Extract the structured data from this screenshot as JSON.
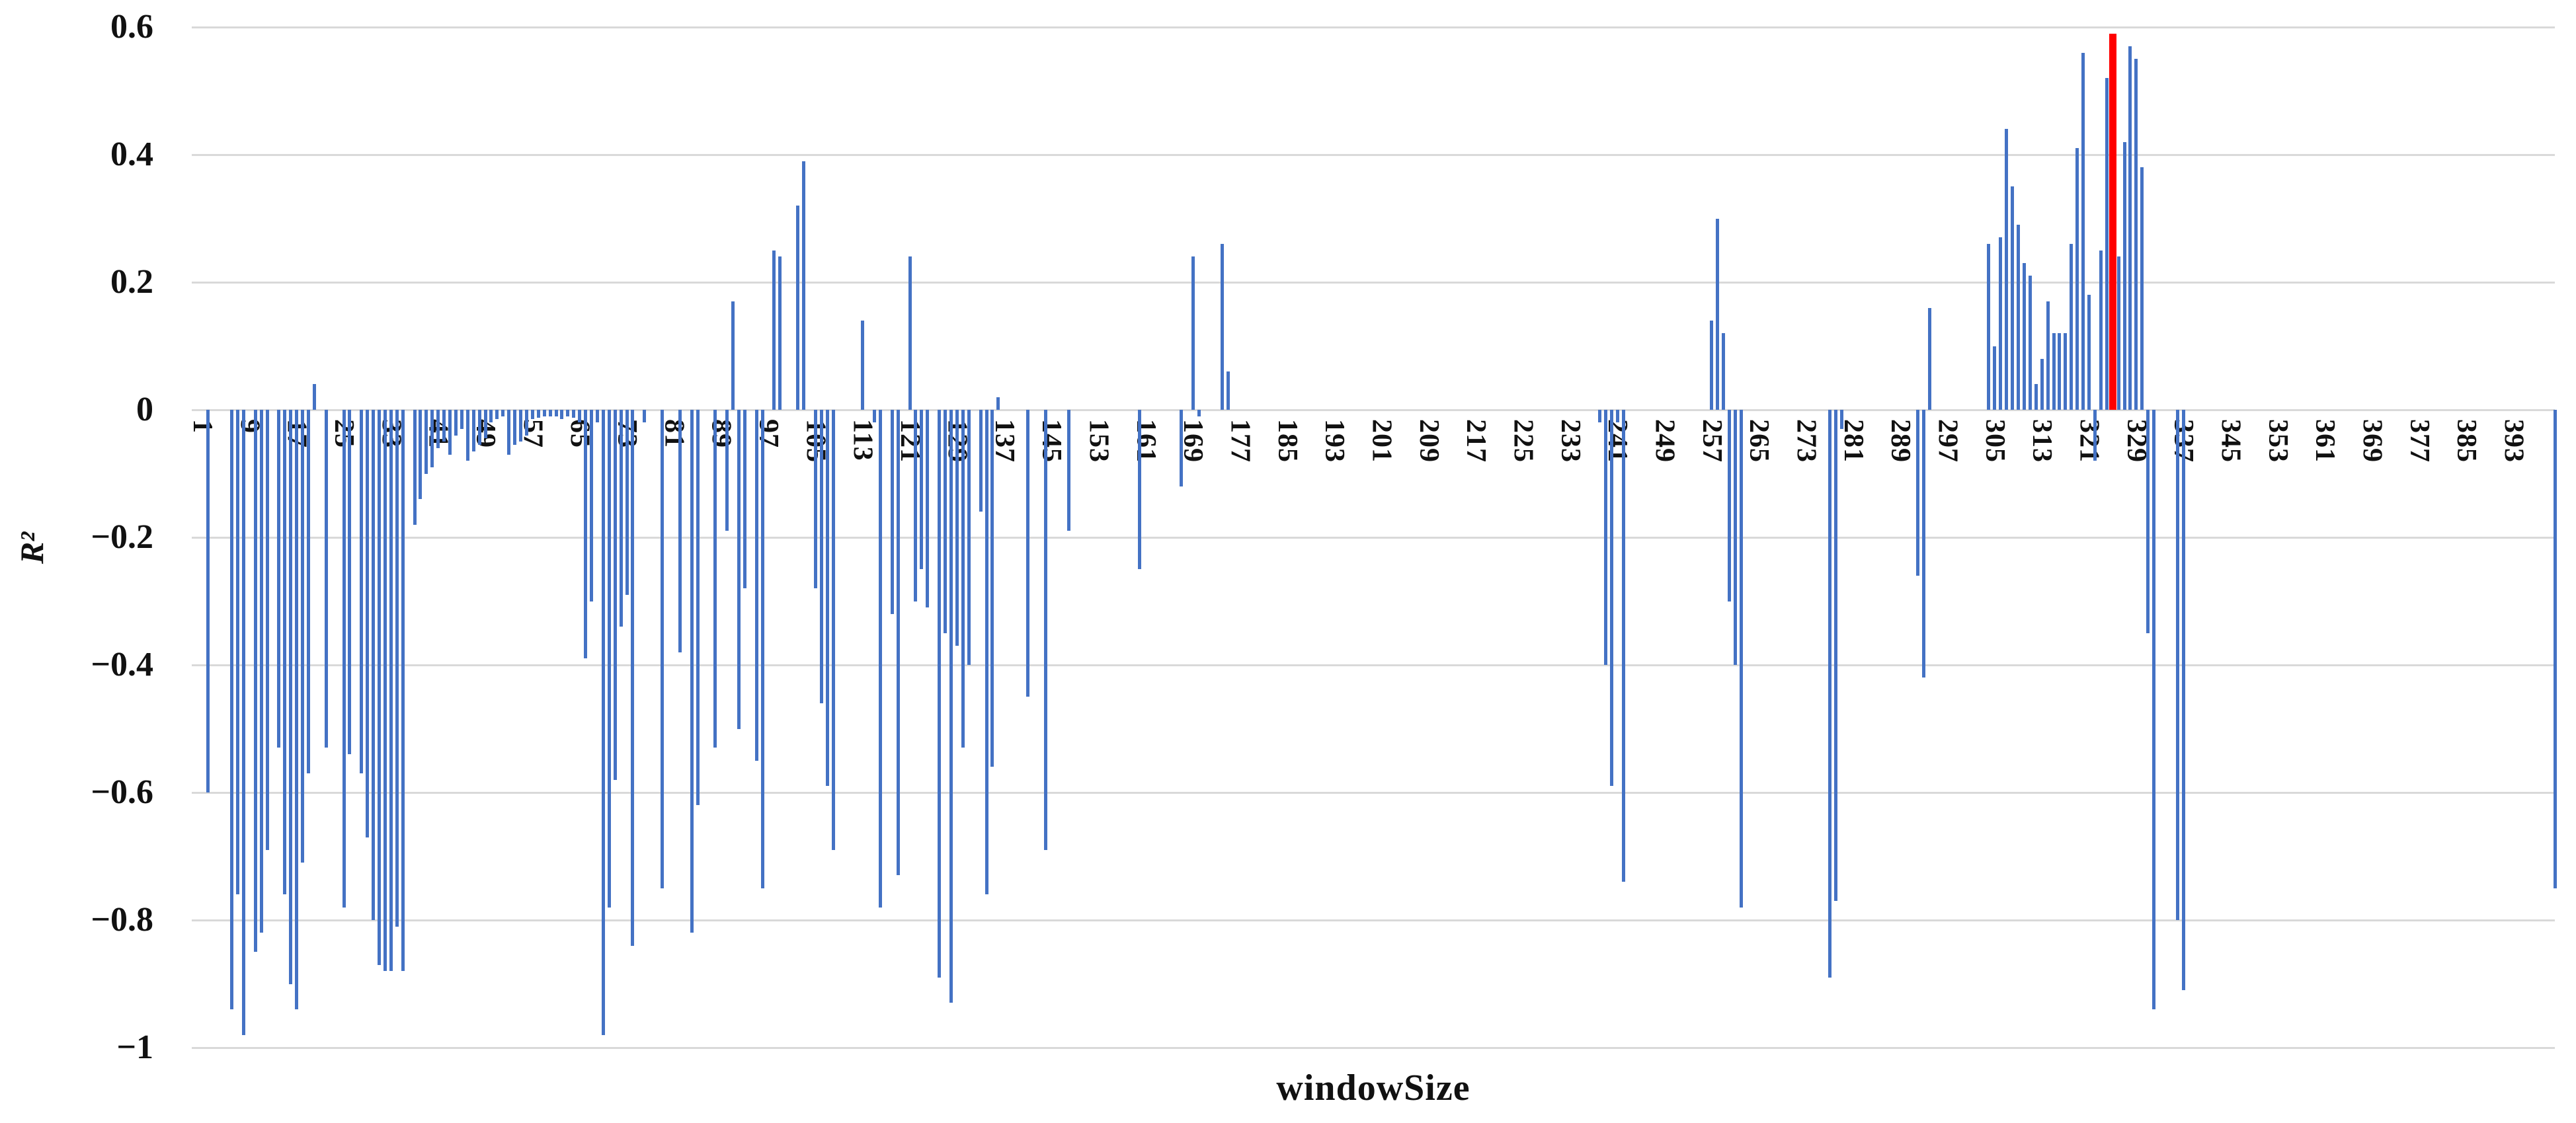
{
  "chart_data": {
    "type": "bar",
    "title": "",
    "xlabel": "windowSize",
    "ylabel": "R²",
    "ylim": [
      -1,
      0.6
    ],
    "ytick_step": 0.2,
    "yticks": [
      "0.6",
      "0.4",
      "0.2",
      "0",
      "-0.2",
      "-0.4",
      "-0.6",
      "-0.8",
      "-1"
    ],
    "ytick_values": [
      0.6,
      0.4,
      0.2,
      0,
      -0.2,
      -0.4,
      -0.6,
      -0.8,
      -1
    ],
    "x_count": 400,
    "xtick_labels": [
      1,
      9,
      17,
      25,
      33,
      41,
      49,
      57,
      65,
      73,
      81,
      89,
      97,
      105,
      113,
      121,
      129,
      137,
      145,
      153,
      161,
      169,
      177,
      185,
      193,
      201,
      209,
      217,
      225,
      233,
      241,
      249,
      257,
      265,
      273,
      281,
      289,
      297,
      305,
      313,
      321,
      329,
      337,
      345,
      353,
      361,
      369,
      377,
      385,
      393
    ],
    "legend": "none",
    "grid": "horizontal",
    "bar_color": "#4472C4",
    "highlight_color": "#FF0000",
    "highlight_x": 325,
    "gridline_color": "#D9D9D9",
    "points": [
      [
        2,
        -0.6
      ],
      [
        6,
        -0.94
      ],
      [
        7,
        -0.76
      ],
      [
        8,
        -0.98
      ],
      [
        10,
        -0.85
      ],
      [
        11,
        -0.82
      ],
      [
        12,
        -0.69
      ],
      [
        14,
        -0.53
      ],
      [
        15,
        -0.76
      ],
      [
        16,
        -0.9
      ],
      [
        17,
        -0.94
      ],
      [
        18,
        -0.71
      ],
      [
        19,
        -0.57
      ],
      [
        20,
        0.04
      ],
      [
        22,
        -0.53
      ],
      [
        25,
        -0.78
      ],
      [
        26,
        -0.54
      ],
      [
        28,
        -0.57
      ],
      [
        29,
        -0.67
      ],
      [
        30,
        -0.8
      ],
      [
        31,
        -0.87
      ],
      [
        32,
        -0.88
      ],
      [
        33,
        -0.88
      ],
      [
        34,
        -0.81
      ],
      [
        35,
        -0.88
      ],
      [
        37,
        -0.18
      ],
      [
        38,
        -0.14
      ],
      [
        39,
        -0.1
      ],
      [
        40,
        -0.09
      ],
      [
        41,
        -0.06
      ],
      [
        42,
        -0.05
      ],
      [
        43,
        -0.07
      ],
      [
        44,
        -0.04
      ],
      [
        45,
        -0.03
      ],
      [
        46,
        -0.08
      ],
      [
        47,
        -0.065
      ],
      [
        48,
        -0.055
      ],
      [
        49,
        -0.045
      ],
      [
        50,
        -0.02
      ],
      [
        51,
        -0.015
      ],
      [
        52,
        -0.01
      ],
      [
        53,
        -0.07
      ],
      [
        54,
        -0.055
      ],
      [
        55,
        -0.05
      ],
      [
        56,
        -0.04
      ],
      [
        57,
        -0.015
      ],
      [
        58,
        -0.012
      ],
      [
        59,
        -0.01
      ],
      [
        60,
        -0.01
      ],
      [
        61,
        -0.01
      ],
      [
        62,
        -0.015
      ],
      [
        63,
        -0.01
      ],
      [
        64,
        -0.012
      ],
      [
        65,
        -0.02
      ],
      [
        66,
        -0.39
      ],
      [
        67,
        -0.3
      ],
      [
        68,
        -0.02
      ],
      [
        69,
        -0.98
      ],
      [
        70,
        -0.78
      ],
      [
        71,
        -0.58
      ],
      [
        72,
        -0.34
      ],
      [
        73,
        -0.29
      ],
      [
        74,
        -0.84
      ],
      [
        76,
        -0.02
      ],
      [
        79,
        -0.75
      ],
      [
        82,
        -0.38
      ],
      [
        84,
        -0.82
      ],
      [
        85,
        -0.62
      ],
      [
        88,
        -0.53
      ],
      [
        90,
        -0.19
      ],
      [
        91,
        0.17
      ],
      [
        92,
        -0.5
      ],
      [
        93,
        -0.28
      ],
      [
        95,
        -0.55
      ],
      [
        96,
        -0.75
      ],
      [
        98,
        0.25
      ],
      [
        99,
        0.24
      ],
      [
        102,
        0.32
      ],
      [
        103,
        0.39
      ],
      [
        105,
        -0.28
      ],
      [
        106,
        -0.46
      ],
      [
        107,
        -0.59
      ],
      [
        108,
        -0.69
      ],
      [
        113,
        0.14
      ],
      [
        115,
        -0.02
      ],
      [
        116,
        -0.78
      ],
      [
        118,
        -0.32
      ],
      [
        119,
        -0.73
      ],
      [
        121,
        0.24
      ],
      [
        122,
        -0.3
      ],
      [
        123,
        -0.25
      ],
      [
        124,
        -0.31
      ],
      [
        126,
        -0.89
      ],
      [
        127,
        -0.35
      ],
      [
        128,
        -0.93
      ],
      [
        129,
        -0.37
      ],
      [
        130,
        -0.53
      ],
      [
        131,
        -0.4
      ],
      [
        133,
        -0.16
      ],
      [
        134,
        -0.76
      ],
      [
        135,
        -0.56
      ],
      [
        136,
        0.02
      ],
      [
        141,
        -0.45
      ],
      [
        144,
        -0.69
      ],
      [
        148,
        -0.19
      ],
      [
        160,
        -0.25
      ],
      [
        167,
        -0.12
      ],
      [
        169,
        0.24
      ],
      [
        170,
        -0.01
      ],
      [
        174,
        0.26
      ],
      [
        175,
        0.06
      ],
      [
        238,
        -0.02
      ],
      [
        239,
        -0.4
      ],
      [
        240,
        -0.59
      ],
      [
        241,
        -0.02
      ],
      [
        242,
        -0.74
      ],
      [
        257,
        0.14
      ],
      [
        258,
        0.3
      ],
      [
        259,
        0.12
      ],
      [
        260,
        -0.3
      ],
      [
        261,
        -0.4
      ],
      [
        262,
        -0.78
      ],
      [
        277,
        -0.89
      ],
      [
        278,
        -0.77
      ],
      [
        279,
        -0.03
      ],
      [
        292,
        -0.26
      ],
      [
        293,
        -0.42
      ],
      [
        294,
        0.16
      ],
      [
        304,
        0.26
      ],
      [
        305,
        0.1
      ],
      [
        306,
        0.27
      ],
      [
        307,
        0.44
      ],
      [
        308,
        0.35
      ],
      [
        309,
        0.29
      ],
      [
        310,
        0.23
      ],
      [
        311,
        0.21
      ],
      [
        312,
        0.04
      ],
      [
        313,
        0.08
      ],
      [
        314,
        0.17
      ],
      [
        315,
        0.12
      ],
      [
        316,
        0.12
      ],
      [
        317,
        0.12
      ],
      [
        318,
        0.26
      ],
      [
        319,
        0.41
      ],
      [
        320,
        0.56
      ],
      [
        321,
        0.18
      ],
      [
        322,
        -0.08
      ],
      [
        323,
        0.25
      ],
      [
        324,
        0.52
      ],
      [
        325,
        0.59
      ],
      [
        326,
        0.24
      ],
      [
        327,
        0.42
      ],
      [
        328,
        0.57
      ],
      [
        329,
        0.55
      ],
      [
        330,
        0.38
      ],
      [
        331,
        -0.35
      ],
      [
        332,
        -0.94
      ],
      [
        336,
        -0.8
      ],
      [
        337,
        -0.91
      ],
      [
        400,
        -0.75
      ]
    ]
  }
}
